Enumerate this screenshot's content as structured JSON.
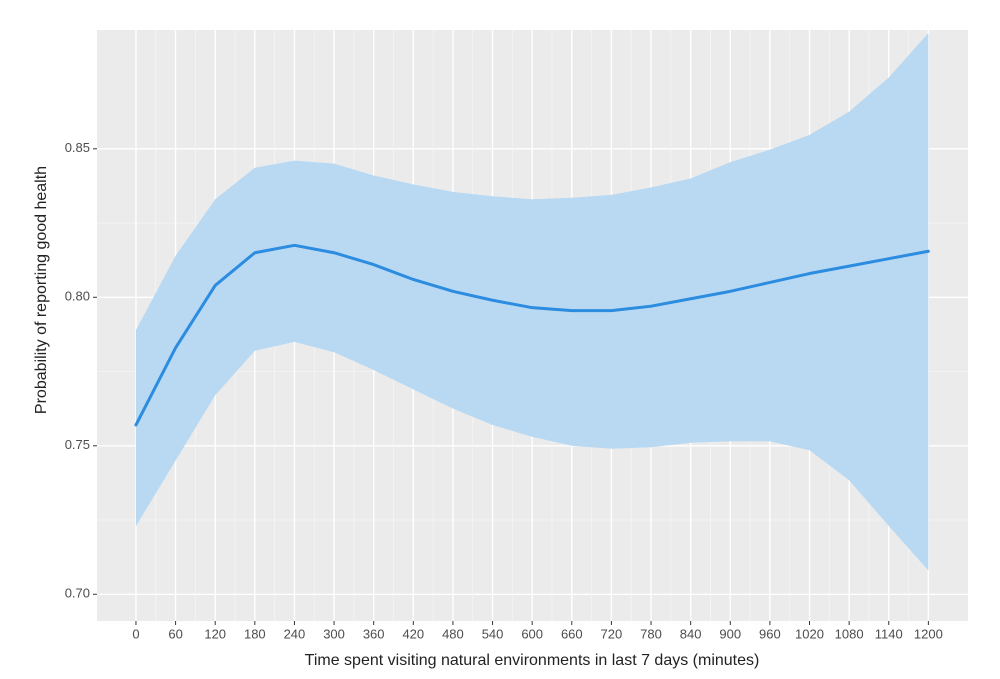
{
  "chart_data": {
    "type": "line",
    "x_label": "Time spent visiting natural environments in last 7 days (minutes)",
    "y_label": "Probability of reporting good health",
    "x": [
      0,
      60,
      120,
      180,
      240,
      300,
      360,
      420,
      480,
      540,
      600,
      660,
      720,
      780,
      840,
      900,
      960,
      1020,
      1080,
      1140,
      1200
    ],
    "series": [
      {
        "color": "#2b8ce0",
        "band_color": "#b9d9f3",
        "values": [
          0.757,
          0.783,
          0.804,
          0.815,
          0.8175,
          0.815,
          0.811,
          0.806,
          0.802,
          0.799,
          0.7965,
          0.7955,
          0.7955,
          0.797,
          0.7995,
          0.802,
          0.805,
          0.808,
          0.8105,
          0.813,
          0.8155
        ],
        "lower": [
          0.723,
          0.745,
          0.767,
          0.782,
          0.785,
          0.7815,
          0.7755,
          0.769,
          0.7625,
          0.757,
          0.753,
          0.75,
          0.749,
          0.7495,
          0.751,
          0.7515,
          0.7515,
          0.7485,
          0.7384,
          0.723,
          0.708
        ],
        "upper": [
          0.789,
          0.814,
          0.833,
          0.8436,
          0.846,
          0.845,
          0.841,
          0.838,
          0.8355,
          0.834,
          0.833,
          0.8335,
          0.8345,
          0.837,
          0.84,
          0.8455,
          0.8497,
          0.8547,
          0.8625,
          0.874,
          0.889
        ]
      }
    ],
    "xlim": [
      -59,
      1260
    ],
    "ylim": [
      0.691,
      0.89
    ],
    "xticks": [
      0,
      60,
      120,
      180,
      240,
      300,
      360,
      420,
      480,
      540,
      600,
      660,
      720,
      780,
      840,
      900,
      960,
      1020,
      1080,
      1140,
      1200
    ],
    "yticks": [
      {
        "value": 0.7,
        "label": "0.70"
      },
      {
        "value": 0.75,
        "label": "0.75"
      },
      {
        "value": 0.8,
        "label": "0.80"
      },
      {
        "value": 0.85,
        "label": "0.85"
      }
    ],
    "grid": true
  }
}
